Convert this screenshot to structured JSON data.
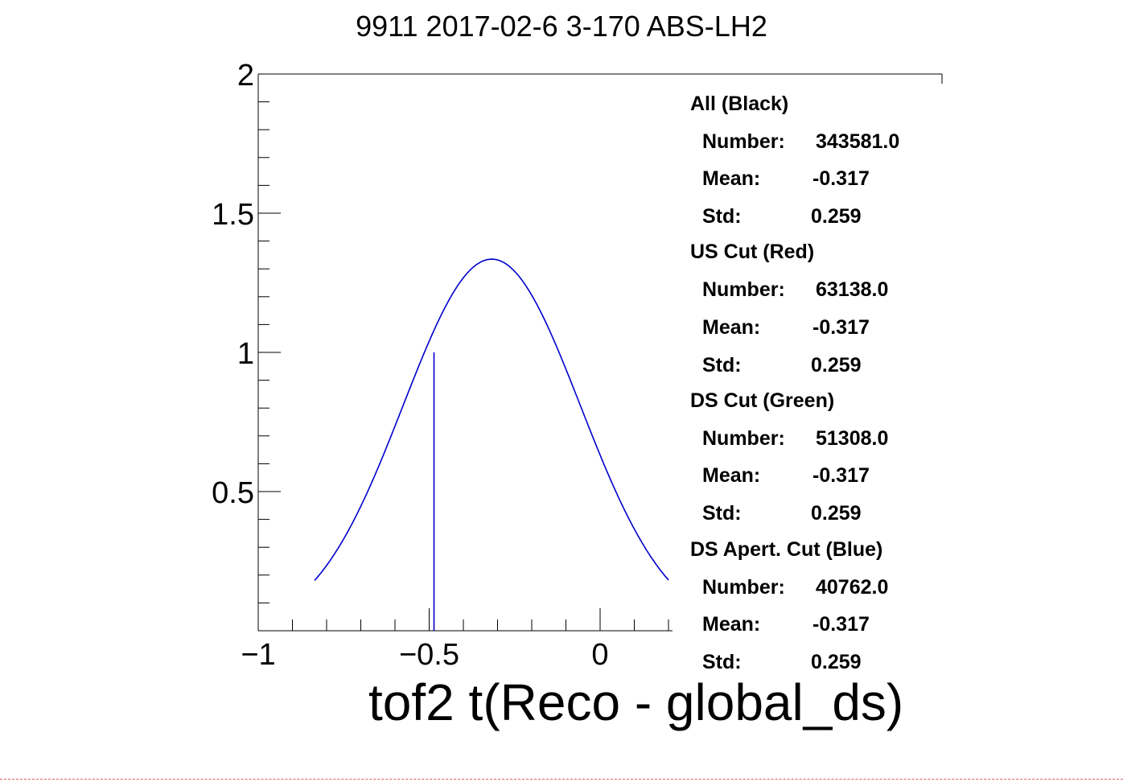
{
  "chart_data": {
    "type": "line",
    "title": "9911 2017-02-6 3-170 ABS-LH2",
    "xlabel": "tof2 t(Reco - global_ds)",
    "ylabel": "",
    "xlim": [
      -1,
      0.2
    ],
    "ylim": [
      0,
      2
    ],
    "x_ticks": [
      "−1",
      "−0.5",
      "0"
    ],
    "y_ticks": [
      "0.5",
      "1",
      "1.5",
      "2"
    ],
    "grid": false,
    "series": [
      {
        "color": "#0000cc",
        "curve": "gaussian",
        "x_range": [
          -0.835,
          0.2
        ],
        "peak_x": -0.317,
        "peak_y": 1.335,
        "sigma": 0.259
      }
    ],
    "vertical_line": {
      "x": -0.5,
      "y": 1.0,
      "color": "#0000cc"
    }
  },
  "stats": [
    {
      "header": "All (Black)",
      "number_label": "Number:",
      "number": "343581.0",
      "mean_label": "Mean:",
      "mean": "-0.317",
      "std_label": "Std:",
      "std": "0.259"
    },
    {
      "header": "US Cut (Red)",
      "number_label": "Number:",
      "number": "63138.0",
      "mean_label": "Mean:",
      "mean": "-0.317",
      "std_label": "Std:",
      "std": "0.259"
    },
    {
      "header": "DS Cut (Green)",
      "number_label": "Number:",
      "number": "51308.0",
      "mean_label": "Mean:",
      "mean": "-0.317",
      "std_label": "Std:",
      "std": "0.259"
    },
    {
      "header": "DS Apert. Cut (Blue)",
      "number_label": "Number:",
      "number": "40762.0",
      "mean_label": "Mean:",
      "mean": "-0.317",
      "std_label": "Std:",
      "std": "0.259"
    }
  ]
}
